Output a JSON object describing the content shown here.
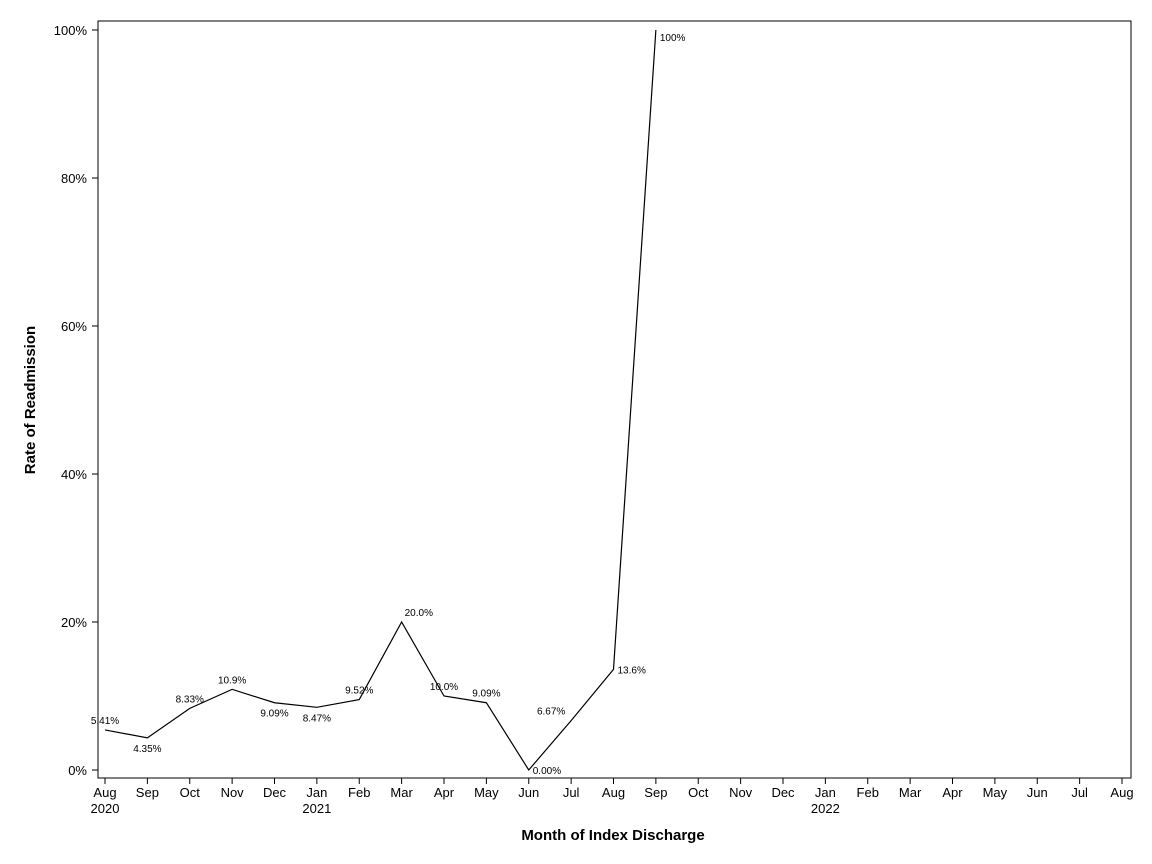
{
  "chart_data": {
    "type": "line",
    "xlabel": "Month of Index Discharge",
    "ylabel": "Rate of Readmission",
    "ylim": [
      0,
      100
    ],
    "y_ticks": [
      "0%",
      "20%",
      "40%",
      "60%",
      "80%",
      "100%"
    ],
    "x_ticks": [
      {
        "month": "Aug",
        "year": "2020"
      },
      {
        "month": "Sep",
        "year": ""
      },
      {
        "month": "Oct",
        "year": ""
      },
      {
        "month": "Nov",
        "year": ""
      },
      {
        "month": "Dec",
        "year": ""
      },
      {
        "month": "Jan",
        "year": "2021"
      },
      {
        "month": "Feb",
        "year": ""
      },
      {
        "month": "Mar",
        "year": ""
      },
      {
        "month": "Apr",
        "year": ""
      },
      {
        "month": "May",
        "year": ""
      },
      {
        "month": "Jun",
        "year": ""
      },
      {
        "month": "Jul",
        "year": ""
      },
      {
        "month": "Aug",
        "year": ""
      },
      {
        "month": "Sep",
        "year": ""
      },
      {
        "month": "Oct",
        "year": ""
      },
      {
        "month": "Nov",
        "year": ""
      },
      {
        "month": "Dec",
        "year": ""
      },
      {
        "month": "Jan",
        "year": "2022"
      },
      {
        "month": "Feb",
        "year": ""
      },
      {
        "month": "Mar",
        "year": ""
      },
      {
        "month": "Apr",
        "year": ""
      },
      {
        "month": "May",
        "year": ""
      },
      {
        "month": "Jun",
        "year": ""
      },
      {
        "month": "Jul",
        "year": ""
      },
      {
        "month": "Aug",
        "year": ""
      }
    ],
    "series": [
      {
        "x": [
          "2020-08",
          "2020-09",
          "2020-10",
          "2020-11",
          "2020-12",
          "2021-01",
          "2021-02",
          "2021-03",
          "2021-04",
          "2021-05",
          "2021-06",
          "2021-07",
          "2021-08",
          "2021-09"
        ],
        "values": [
          5.41,
          4.35,
          8.33,
          10.9,
          9.09,
          8.47,
          9.52,
          20.0,
          10.0,
          9.09,
          0.0,
          6.67,
          13.6,
          100
        ],
        "labels": [
          "5.41%",
          "4.35%",
          "8.33%",
          "10.9%",
          "9.09%",
          "8.47%",
          "9.52%",
          "20.0%",
          "10.0%",
          "9.09%",
          "0.00%",
          "6.67%",
          "13.6%",
          "100%"
        ]
      }
    ],
    "grid": false,
    "line_color": "#000000"
  }
}
